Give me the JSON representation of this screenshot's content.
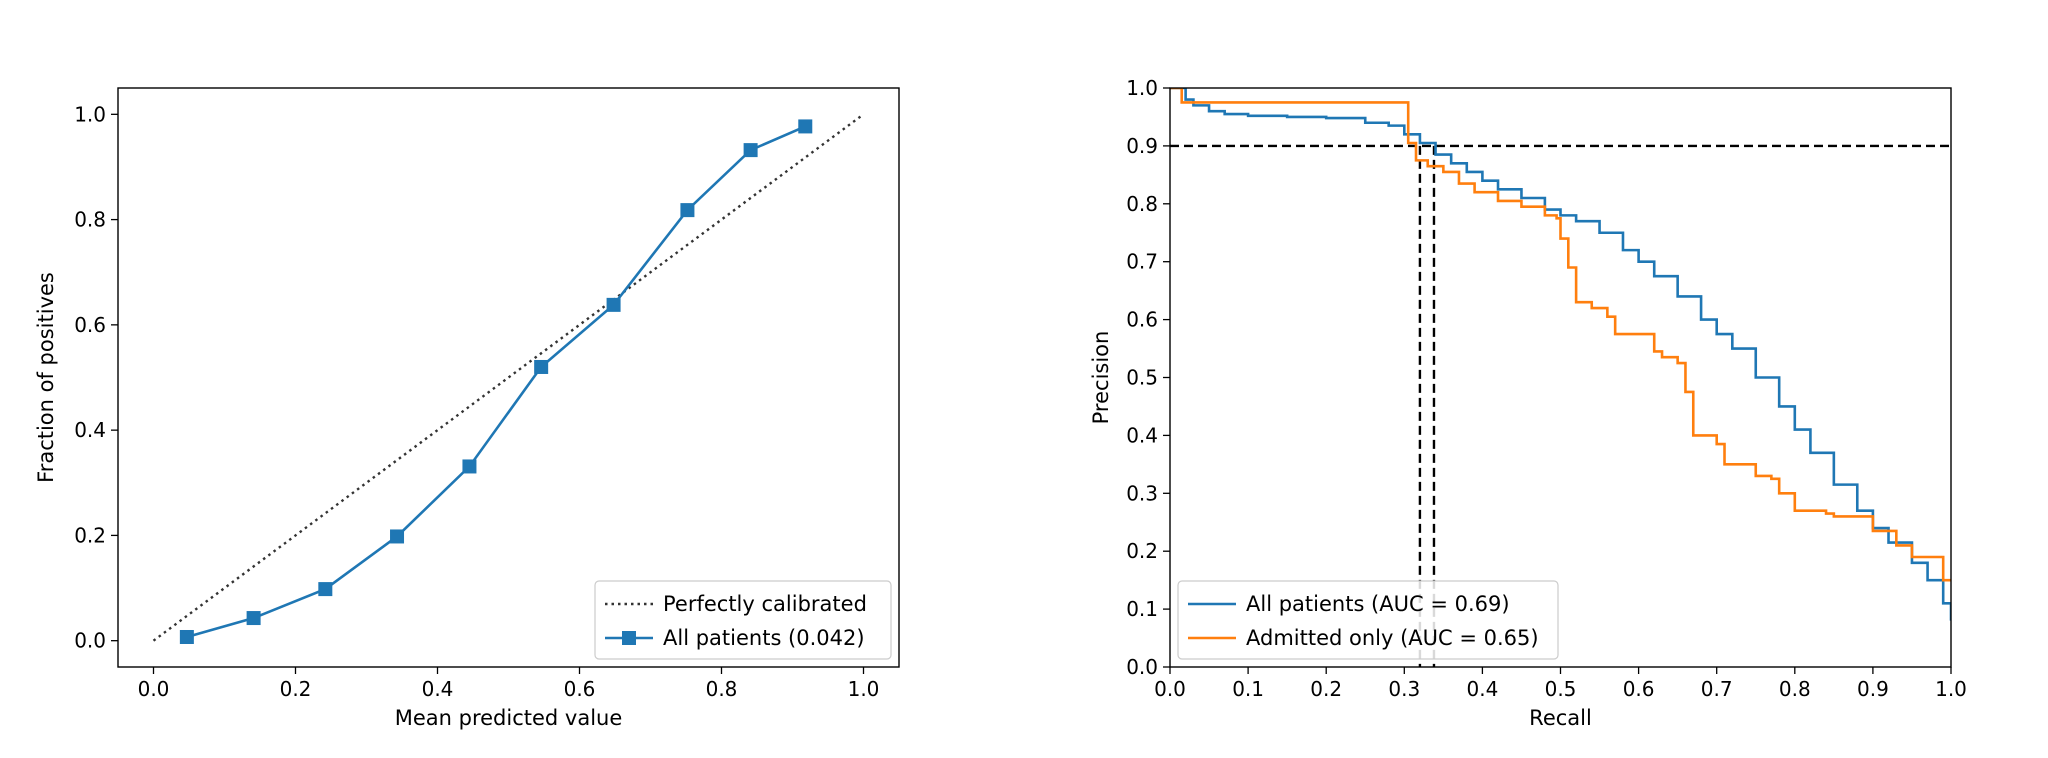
{
  "chart_data": [
    {
      "type": "line",
      "title": "",
      "xlabel": "Mean predicted value",
      "ylabel": "Fraction of positives",
      "xlim": [
        -0.05,
        1.05
      ],
      "ylim": [
        -0.05,
        1.05
      ],
      "xticks": [
        "0.0",
        "0.2",
        "0.4",
        "0.6",
        "0.8",
        "1.0"
      ],
      "yticks": [
        "0.0",
        "0.2",
        "0.4",
        "0.6",
        "0.8",
        "1.0"
      ],
      "grid": false,
      "legend_position": "lower-right",
      "series": [
        {
          "name": "Perfectly calibrated",
          "style": "dotted",
          "color": "#333333",
          "x": [
            0.0,
            1.0
          ],
          "y": [
            0.0,
            1.0
          ]
        },
        {
          "name": "All patients (0.042)",
          "style": "solid-square-markers",
          "color": "#1f77b4",
          "x": [
            0.047,
            0.141,
            0.242,
            0.343,
            0.445,
            0.546,
            0.648,
            0.752,
            0.841,
            0.918
          ],
          "y": [
            0.007,
            0.043,
            0.098,
            0.198,
            0.331,
            0.52,
            0.638,
            0.818,
            0.932,
            0.977
          ]
        }
      ]
    },
    {
      "type": "line",
      "title": "",
      "xlabel": "Recall",
      "ylabel": "Precision",
      "xlim": [
        0.0,
        1.0
      ],
      "ylim": [
        0.0,
        1.0
      ],
      "xticks": [
        "0.0",
        "0.1",
        "0.2",
        "0.3",
        "0.4",
        "0.5",
        "0.6",
        "0.7",
        "0.8",
        "0.9",
        "1.0"
      ],
      "yticks": [
        "0.0",
        "0.1",
        "0.2",
        "0.3",
        "0.4",
        "0.5",
        "0.6",
        "0.7",
        "0.8",
        "0.9",
        "1.0"
      ],
      "grid": false,
      "legend_position": "lower-left",
      "series": [
        {
          "name": "All patients (AUC = 0.69)",
          "style": "step",
          "color": "#1f77b4",
          "x": [
            0.0,
            0.01,
            0.02,
            0.03,
            0.05,
            0.07,
            0.1,
            0.15,
            0.2,
            0.25,
            0.28,
            0.3,
            0.32,
            0.34,
            0.36,
            0.38,
            0.4,
            0.42,
            0.45,
            0.48,
            0.5,
            0.52,
            0.55,
            0.58,
            0.6,
            0.62,
            0.65,
            0.68,
            0.7,
            0.72,
            0.75,
            0.78,
            0.8,
            0.82,
            0.85,
            0.88,
            0.9,
            0.92,
            0.95,
            0.97,
            0.99,
            1.0
          ],
          "y": [
            1.0,
            1.0,
            0.98,
            0.97,
            0.96,
            0.955,
            0.952,
            0.95,
            0.948,
            0.94,
            0.935,
            0.92,
            0.905,
            0.885,
            0.87,
            0.855,
            0.84,
            0.825,
            0.81,
            0.79,
            0.78,
            0.77,
            0.75,
            0.72,
            0.7,
            0.675,
            0.64,
            0.6,
            0.575,
            0.55,
            0.5,
            0.45,
            0.41,
            0.37,
            0.315,
            0.27,
            0.24,
            0.215,
            0.18,
            0.15,
            0.11,
            0.08
          ]
        },
        {
          "name": "Admitted only (AUC = 0.65)",
          "style": "step",
          "color": "#ff7f0e",
          "x": [
            0.0,
            0.015,
            0.05,
            0.1,
            0.2,
            0.3,
            0.305,
            0.315,
            0.33,
            0.35,
            0.37,
            0.39,
            0.42,
            0.45,
            0.48,
            0.495,
            0.5,
            0.51,
            0.52,
            0.54,
            0.56,
            0.57,
            0.62,
            0.63,
            0.65,
            0.66,
            0.67,
            0.7,
            0.71,
            0.75,
            0.77,
            0.78,
            0.8,
            0.84,
            0.85,
            0.9,
            0.93,
            0.95,
            0.99,
            1.0
          ],
          "y": [
            1.0,
            0.975,
            0.975,
            0.975,
            0.975,
            0.975,
            0.905,
            0.875,
            0.865,
            0.855,
            0.835,
            0.82,
            0.805,
            0.795,
            0.78,
            0.775,
            0.74,
            0.69,
            0.63,
            0.62,
            0.605,
            0.575,
            0.545,
            0.535,
            0.525,
            0.475,
            0.4,
            0.385,
            0.35,
            0.33,
            0.325,
            0.3,
            0.27,
            0.265,
            0.26,
            0.235,
            0.21,
            0.19,
            0.15,
            0.15
          ]
        }
      ],
      "reference_lines": {
        "color": "#000000",
        "style": "dashed",
        "horizontal_y": [
          0.9
        ],
        "vertical_x": [
          0.32,
          0.338
        ],
        "vertical_y_top": 0.9
      }
    }
  ]
}
